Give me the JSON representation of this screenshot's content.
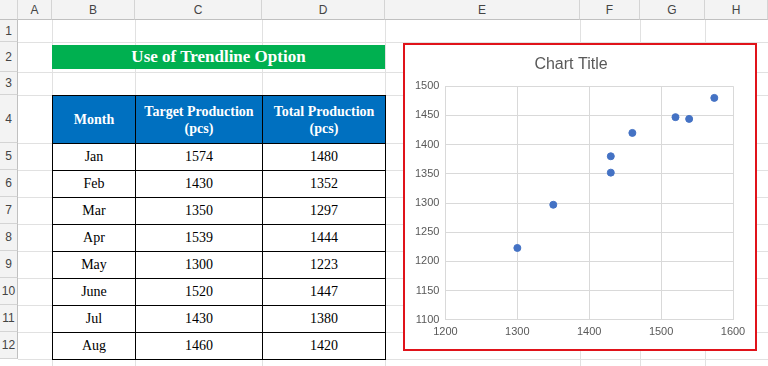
{
  "spreadsheet": {
    "columns": [
      "A",
      "B",
      "C",
      "D",
      "E",
      "F",
      "G",
      "H"
    ],
    "rows": [
      1,
      2,
      3,
      4,
      5,
      6,
      7,
      8,
      9,
      10,
      11,
      12
    ]
  },
  "title": "Use of Trendline Option",
  "table": {
    "header": [
      "Month",
      "Target Production (pcs)",
      "Total Production (pcs)"
    ],
    "rows": [
      [
        "Jan",
        1574,
        1480
      ],
      [
        "Feb",
        1430,
        1352
      ],
      [
        "Mar",
        1350,
        1297
      ],
      [
        "Apr",
        1539,
        1444
      ],
      [
        "May",
        1300,
        1223
      ],
      [
        "June",
        1520,
        1447
      ],
      [
        "Jul",
        1430,
        1380
      ],
      [
        "Aug",
        1460,
        1420
      ]
    ]
  },
  "chart_data": {
    "type": "scatter",
    "title": "Chart Title",
    "x": [
      1574,
      1430,
      1350,
      1539,
      1300,
      1520,
      1430,
      1460
    ],
    "values": [
      1480,
      1352,
      1297,
      1444,
      1223,
      1447,
      1380,
      1420
    ],
    "color": "#4472c4",
    "marker": "circle",
    "xlim": [
      1200,
      1600
    ],
    "xticks": [
      1200,
      1300,
      1400,
      1500,
      1600
    ],
    "ylim": [
      1100,
      1500
    ],
    "yticks": [
      1100,
      1150,
      1200,
      1250,
      1300,
      1350,
      1400,
      1450,
      1500
    ],
    "grid": true
  }
}
